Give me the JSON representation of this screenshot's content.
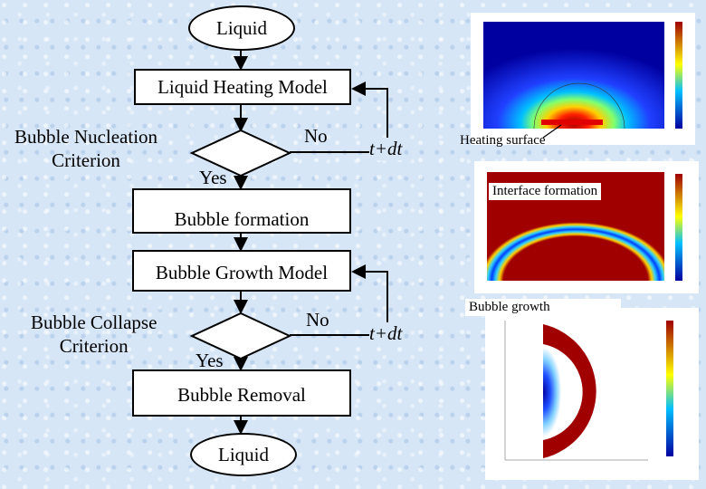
{
  "flowchart": {
    "start_label": "Liquid",
    "heating_model": "Liquid Heating Model",
    "nucleation_criterion": "Bubble Nucleation\nCriterion",
    "decision1_no": "No",
    "decision1_yes": "Yes",
    "loop1_label": "t+dt",
    "bubble_formation": "Bubble formation",
    "growth_model": "Bubble Growth Model",
    "collapse_criterion": "Bubble Collapse\nCriterion",
    "decision2_no": "No",
    "decision2_yes": "Yes",
    "loop2_label": "t+dt",
    "bubble_removal": "Bubble Removal",
    "end_label": "Liquid"
  },
  "figures": {
    "heating_caption": "Heating surface",
    "interface_caption": "Interface formation",
    "growth_caption": "Bubble growth"
  },
  "colors": {
    "background": "#d6e6f7",
    "colormap_low": "#0000a0",
    "colormap_high": "#a00000",
    "heater": "#e00000"
  }
}
